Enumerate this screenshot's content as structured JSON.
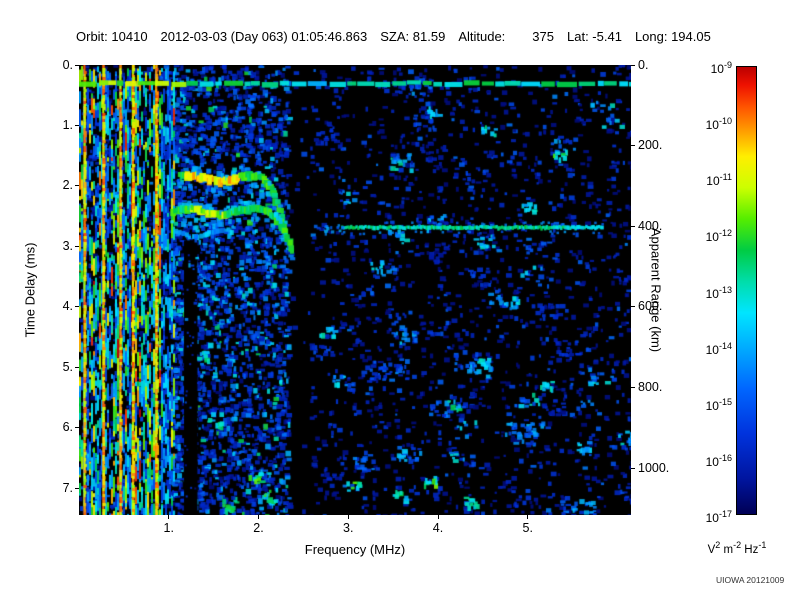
{
  "header": {
    "orbit": "Orbit: 10410",
    "datetime": "2012-03-03 (Day 063) 01:05:46.863",
    "sza": "SZA: 81.59",
    "altitude_label": "Altitude:",
    "altitude_value": "375",
    "lat": "Lat: -5.41",
    "long": "Long: 194.05"
  },
  "watermark": "UIOWA 20121009",
  "chart_data": {
    "type": "heatmap",
    "xlabel": "Frequency (MHz)",
    "ylabel_left": "Time Delay (ms)",
    "ylabel_right": "Apparent Range (km)",
    "xlim": [
      0,
      6.15
    ],
    "ylim_ms": [
      0,
      7.44
    ],
    "y_axis_inverted": true,
    "km_per_ms": 150,
    "x_ticks": [
      {
        "value": 1,
        "label": "1."
      },
      {
        "value": 2,
        "label": "2."
      },
      {
        "value": 3,
        "label": "3."
      },
      {
        "value": 4,
        "label": "4."
      },
      {
        "value": 5,
        "label": "5."
      }
    ],
    "y_ticks": [
      {
        "value": 0,
        "label": "0."
      },
      {
        "value": 1,
        "label": "1."
      },
      {
        "value": 2,
        "label": "2."
      },
      {
        "value": 3,
        "label": "3."
      },
      {
        "value": 4,
        "label": "4."
      },
      {
        "value": 5,
        "label": "5."
      },
      {
        "value": 6,
        "label": "6."
      },
      {
        "value": 7,
        "label": "7."
      }
    ],
    "y2_ticks": [
      {
        "km": 0,
        "label": "0."
      },
      {
        "km": 200,
        "label": "200."
      },
      {
        "km": 400,
        "label": "400."
      },
      {
        "km": 600,
        "label": "600."
      },
      {
        "km": 800,
        "label": "800."
      },
      {
        "km": 1000,
        "label": "1000."
      }
    ],
    "colorbar": {
      "tick_base": "10",
      "tick_exponents": [
        "-9",
        "-10",
        "-11",
        "-12",
        "-13",
        "-14",
        "-15",
        "-16",
        "-17"
      ],
      "units_parts": [
        {
          "base": "V",
          "exp": "2"
        },
        {
          "base": " m",
          "exp": "-2"
        },
        {
          "base": " Hz",
          "exp": "-1"
        }
      ],
      "gradient": [
        {
          "pos": 0.0,
          "color": "#bb0000"
        },
        {
          "pos": 0.04,
          "color": "#ee1100"
        },
        {
          "pos": 0.09,
          "color": "#ff5500"
        },
        {
          "pos": 0.14,
          "color": "#ff9900"
        },
        {
          "pos": 0.2,
          "color": "#ffee00"
        },
        {
          "pos": 0.27,
          "color": "#ccff00"
        },
        {
          "pos": 0.34,
          "color": "#55ee00"
        },
        {
          "pos": 0.41,
          "color": "#00cc44"
        },
        {
          "pos": 0.48,
          "color": "#00ddaa"
        },
        {
          "pos": 0.55,
          "color": "#00e5ff"
        },
        {
          "pos": 0.63,
          "color": "#00aaff"
        },
        {
          "pos": 0.72,
          "color": "#0066ff"
        },
        {
          "pos": 0.82,
          "color": "#0033dd"
        },
        {
          "pos": 0.92,
          "color": "#0015a0"
        },
        {
          "pos": 1.0,
          "color": "#000055"
        }
      ]
    },
    "features": {
      "noise_seed": 20121009,
      "low_freq_noise": {
        "f_max": 1.05,
        "bright_stripe_freqs": [
          0.06,
          0.27,
          0.46,
          0.6,
          0.86
        ]
      },
      "top_band_ms": 0.3,
      "dark_column_1": {
        "f_range": [
          1.17,
          1.32
        ],
        "ms_min": 2.9
      },
      "dark_column_2": {
        "f_range": [
          2.33,
          2.57
        ]
      },
      "trace_upper": {
        "f_range": [
          1.13,
          2.3
        ],
        "ms_flat": 1.87,
        "cusp_f": 1.98,
        "ms_end": 2.72,
        "bright_f_range": [
          1.18,
          1.8
        ],
        "bright_v": 0.72,
        "base_v": 0.54
      },
      "trace_lower": {
        "f_range": [
          1.05,
          2.38
        ],
        "ms_flat": 2.42,
        "cusp_f": 2.05,
        "ms_end": 3.05,
        "bright_f_range": [
          1.25,
          1.62
        ],
        "bright_v": 0.62,
        "base_v": 0.52
      },
      "trace_faint": {
        "f_range": [
          1.06,
          1.8
        ],
        "ms": 2.78
      },
      "surface_echo": {
        "ms": 2.68,
        "f_range": [
          2.92,
          5.82
        ]
      },
      "hotspots": [
        [
          3.05,
          6.95,
          0.6
        ],
        [
          3.55,
          7.1,
          0.5
        ],
        [
          3.9,
          6.85,
          0.6
        ],
        [
          4.35,
          7.2,
          0.55
        ],
        [
          4.15,
          5.6,
          0.5
        ],
        [
          4.5,
          4.9,
          0.45
        ],
        [
          5.0,
          2.35,
          0.5
        ],
        [
          5.35,
          1.45,
          0.55
        ],
        [
          4.55,
          1.05,
          0.5
        ],
        [
          3.95,
          0.75,
          0.45
        ],
        [
          3.3,
          3.3,
          0.45
        ],
        [
          4.8,
          3.9,
          0.4
        ],
        [
          5.2,
          5.3,
          0.45
        ],
        [
          5.6,
          6.3,
          0.4
        ],
        [
          2.75,
          4.4,
          0.45
        ],
        [
          2.9,
          5.2,
          0.4
        ],
        [
          1.95,
          6.8,
          0.6
        ],
        [
          2.1,
          7.15,
          0.55
        ],
        [
          1.7,
          7.3,
          0.6
        ],
        [
          1.5,
          5.9,
          0.5
        ],
        [
          1.35,
          4.8,
          0.5
        ]
      ]
    }
  }
}
